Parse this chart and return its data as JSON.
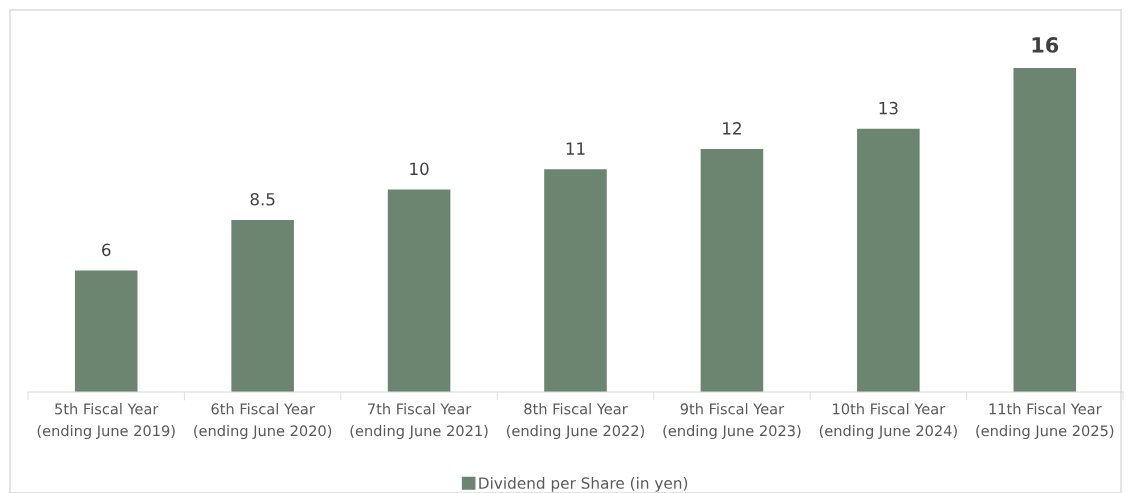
{
  "chart_data": {
    "type": "bar",
    "categories": [
      "5th Fiscal Year\n(ending June 2019)",
      "6th Fiscal Year\n(ending June 2020)",
      "7th Fiscal Year\n(ending June 2021)",
      "8th Fiscal Year\n(ending June 2022)",
      "9th Fiscal Year\n(ending June 2023)",
      "10th Fiscal Year\n(ending June 2024)",
      "11th Fiscal Year\n(ending June 2025)"
    ],
    "series": [
      {
        "name": "Dividend per Share (in yen)",
        "color": "#6b8570",
        "values": [
          6,
          8.5,
          10,
          11,
          12,
          13,
          16
        ]
      }
    ],
    "data_labels": true,
    "legend": "bottom",
    "grid": false
  }
}
